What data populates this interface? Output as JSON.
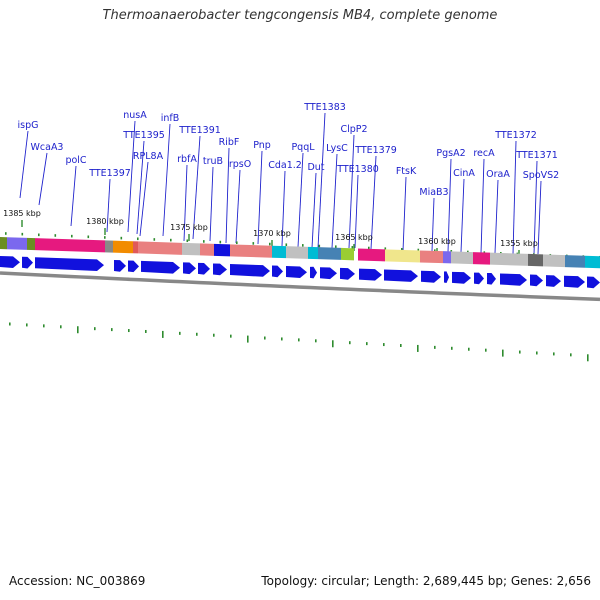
{
  "title": "Thermoanaerobacter tengcongensis MB4, complete genome",
  "footer": {
    "accession": "Accession: NC_003869",
    "topology": "Topology: circular; Length: 2,689,445 bp; Genes: 2,656"
  },
  "colors": {
    "label_text": "#1f22cc",
    "forward_arrow": "#1111dd",
    "gc_tick": "#2e8b2e",
    "backbone": "#888888"
  },
  "kbp_markers": [
    "1385 kbp",
    "1380 kbp",
    "1375 kbp",
    "1370 kbp",
    "1365 kbp",
    "1360 kbp",
    "1355 kbp"
  ],
  "gene_labels": [
    "ispG",
    "WcaA3",
    "polC",
    "TTE1397",
    "nusA",
    "TTE1395",
    "RPL8A",
    "infB",
    "TTE1391",
    "rbfA",
    "truB",
    "RibF",
    "rpsO",
    "Pnp",
    "Cda1.2",
    "PqqL",
    "TTE1383",
    "Dut",
    "LysC",
    "ClpP2",
    "TTE1380",
    "TTE1379",
    "FtsK",
    "MiaB3",
    "PgsA2",
    "CinA",
    "recA",
    "OraA",
    "TTE1372",
    "TTE1371",
    "SpoVS2"
  ]
}
